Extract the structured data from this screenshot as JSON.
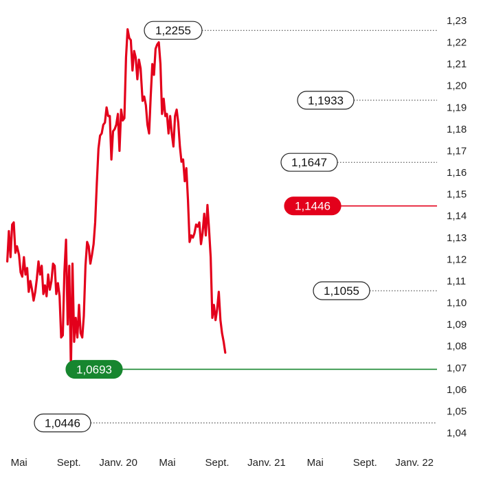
{
  "chart_data": {
    "type": "line",
    "title": "",
    "xlabel": "",
    "ylabel": "",
    "ylim": [
      1.04,
      1.23
    ],
    "grid": false,
    "legend": "none",
    "y_ticks": [
      "1,04",
      "1,05",
      "1,06",
      "1,07",
      "1,08",
      "1,09",
      "1,10",
      "1,11",
      "1,12",
      "1,13",
      "1,14",
      "1,15",
      "1,16",
      "1,17",
      "1,18",
      "1,19",
      "1,20",
      "1,21",
      "1,22",
      "1,23"
    ],
    "x_ticks": [
      {
        "label": "Mai",
        "date": "2019-05-01"
      },
      {
        "label": "Sept.",
        "date": "2019-09-01"
      },
      {
        "label": "Janv. 20",
        "date": "2020-01-01"
      },
      {
        "label": "Mai",
        "date": "2020-05-01"
      },
      {
        "label": "Sept.",
        "date": "2020-09-01"
      },
      {
        "label": "Janv. 21",
        "date": "2021-01-01"
      },
      {
        "label": "Mai",
        "date": "2021-05-01"
      },
      {
        "label": "Sept.",
        "date": "2021-09-01"
      },
      {
        "label": "Janv. 22",
        "date": "2022-01-01"
      }
    ],
    "series": [
      {
        "color": "#e3001b",
        "points": [
          [
            "2019-04-02",
            1.119
          ],
          [
            "2019-04-06",
            1.133
          ],
          [
            "2019-04-10",
            1.121
          ],
          [
            "2019-04-14",
            1.136
          ],
          [
            "2019-04-18",
            1.137
          ],
          [
            "2019-04-22",
            1.123
          ],
          [
            "2019-04-26",
            1.126
          ],
          [
            "2019-05-01",
            1.122
          ],
          [
            "2019-05-05",
            1.114
          ],
          [
            "2019-05-09",
            1.112
          ],
          [
            "2019-05-13",
            1.121
          ],
          [
            "2019-05-17",
            1.113
          ],
          [
            "2019-05-21",
            1.116
          ],
          [
            "2019-05-25",
            1.105
          ],
          [
            "2019-05-29",
            1.11
          ],
          [
            "2019-06-02",
            1.106
          ],
          [
            "2019-06-06",
            1.101
          ],
          [
            "2019-06-10",
            1.105
          ],
          [
            "2019-06-14",
            1.111
          ],
          [
            "2019-06-18",
            1.119
          ],
          [
            "2019-06-22",
            1.113
          ],
          [
            "2019-06-26",
            1.117
          ],
          [
            "2019-06-30",
            1.104
          ],
          [
            "2019-07-04",
            1.108
          ],
          [
            "2019-07-08",
            1.103
          ],
          [
            "2019-07-12",
            1.113
          ],
          [
            "2019-07-16",
            1.106
          ],
          [
            "2019-07-20",
            1.11
          ],
          [
            "2019-07-24",
            1.118
          ],
          [
            "2019-07-28",
            1.117
          ],
          [
            "2019-08-01",
            1.104
          ],
          [
            "2019-08-05",
            1.109
          ],
          [
            "2019-08-09",
            1.103
          ],
          [
            "2019-08-13",
            1.084
          ],
          [
            "2019-08-17",
            1.085
          ],
          [
            "2019-08-21",
            1.114
          ],
          [
            "2019-08-25",
            1.129
          ],
          [
            "2019-08-29",
            1.09
          ],
          [
            "2019-09-02",
            1.117
          ],
          [
            "2019-09-06",
            1.069
          ],
          [
            "2019-09-10",
            1.118
          ],
          [
            "2019-09-14",
            1.082
          ],
          [
            "2019-09-18",
            1.093
          ],
          [
            "2019-09-22",
            1.084
          ],
          [
            "2019-09-26",
            1.099
          ],
          [
            "2019-09-30",
            1.086
          ],
          [
            "2019-10-04",
            1.084
          ],
          [
            "2019-10-08",
            1.094
          ],
          [
            "2019-10-12",
            1.117
          ],
          [
            "2019-10-16",
            1.128
          ],
          [
            "2019-10-20",
            1.126
          ],
          [
            "2019-10-24",
            1.118
          ],
          [
            "2019-10-28",
            1.122
          ],
          [
            "2019-11-01",
            1.127
          ],
          [
            "2019-11-05",
            1.137
          ],
          [
            "2019-11-09",
            1.155
          ],
          [
            "2019-11-13",
            1.171
          ],
          [
            "2019-11-17",
            1.177
          ],
          [
            "2019-11-21",
            1.178
          ],
          [
            "2019-11-25",
            1.182
          ],
          [
            "2019-11-29",
            1.183
          ],
          [
            "2019-12-03",
            1.19
          ],
          [
            "2019-12-07",
            1.186
          ],
          [
            "2019-12-11",
            1.186
          ],
          [
            "2019-12-15",
            1.166
          ],
          [
            "2019-12-19",
            1.179
          ],
          [
            "2019-12-23",
            1.18
          ],
          [
            "2019-12-27",
            1.182
          ],
          [
            "2019-12-31",
            1.187
          ],
          [
            "2020-01-04",
            1.17
          ],
          [
            "2020-01-08",
            1.189
          ],
          [
            "2020-01-12",
            1.184
          ],
          [
            "2020-01-16",
            1.185
          ],
          [
            "2020-01-20",
            1.213
          ],
          [
            "2020-01-24",
            1.226
          ],
          [
            "2020-01-28",
            1.222
          ],
          [
            "2020-02-01",
            1.221
          ],
          [
            "2020-02-05",
            1.207
          ],
          [
            "2020-02-09",
            1.216
          ],
          [
            "2020-02-13",
            1.213
          ],
          [
            "2020-02-17",
            1.203
          ],
          [
            "2020-02-21",
            1.212
          ],
          [
            "2020-02-25",
            1.208
          ],
          [
            "2020-03-01",
            1.193
          ],
          [
            "2020-03-05",
            1.195
          ],
          [
            "2020-03-09",
            1.191
          ],
          [
            "2020-03-13",
            1.182
          ],
          [
            "2020-03-17",
            1.178
          ],
          [
            "2020-03-21",
            1.195
          ],
          [
            "2020-03-25",
            1.21
          ],
          [
            "2020-03-29",
            1.205
          ],
          [
            "2020-04-02",
            1.217
          ],
          [
            "2020-04-06",
            1.219
          ],
          [
            "2020-04-10",
            1.22
          ],
          [
            "2020-04-14",
            1.21
          ],
          [
            "2020-04-18",
            1.187
          ],
          [
            "2020-04-22",
            1.194
          ],
          [
            "2020-04-26",
            1.186
          ],
          [
            "2020-04-30",
            1.187
          ],
          [
            "2020-05-04",
            1.178
          ],
          [
            "2020-05-08",
            1.186
          ],
          [
            "2020-05-12",
            1.178
          ],
          [
            "2020-05-16",
            1.172
          ],
          [
            "2020-05-20",
            1.186
          ],
          [
            "2020-05-24",
            1.189
          ],
          [
            "2020-05-28",
            1.183
          ],
          [
            "2020-06-01",
            1.172
          ],
          [
            "2020-06-05",
            1.165
          ],
          [
            "2020-06-09",
            1.166
          ],
          [
            "2020-06-13",
            1.156
          ],
          [
            "2020-06-17",
            1.162
          ],
          [
            "2020-06-21",
            1.147
          ],
          [
            "2020-06-25",
            1.128
          ],
          [
            "2020-06-29",
            1.131
          ],
          [
            "2020-07-03",
            1.13
          ],
          [
            "2020-07-07",
            1.132
          ],
          [
            "2020-07-11",
            1.136
          ],
          [
            "2020-07-15",
            1.135
          ],
          [
            "2020-07-19",
            1.137
          ],
          [
            "2020-07-23",
            1.127
          ],
          [
            "2020-07-27",
            1.132
          ],
          [
            "2020-07-31",
            1.141
          ],
          [
            "2020-08-04",
            1.131
          ],
          [
            "2020-08-08",
            1.145
          ],
          [
            "2020-08-12",
            1.134
          ],
          [
            "2020-08-16",
            1.121
          ],
          [
            "2020-08-20",
            1.093
          ],
          [
            "2020-08-24",
            1.099
          ],
          [
            "2020-08-28",
            1.092
          ],
          [
            "2020-09-01",
            1.097
          ],
          [
            "2020-09-05",
            1.105
          ],
          [
            "2020-09-09",
            1.092
          ],
          [
            "2020-09-13",
            1.086
          ],
          [
            "2020-09-17",
            1.082
          ],
          [
            "2020-09-21",
            1.077
          ]
        ]
      }
    ],
    "annotations": [
      {
        "label": "1,2255",
        "value": 1.2255,
        "style": "outline",
        "line": "dotted"
      },
      {
        "label": "1,1933",
        "value": 1.1933,
        "style": "outline",
        "line": "dotted"
      },
      {
        "label": "1,1647",
        "value": 1.1647,
        "style": "outline",
        "line": "dotted"
      },
      {
        "label": "1,1446",
        "value": 1.1446,
        "style": "filled",
        "line": "solid",
        "color": "#e3001b"
      },
      {
        "label": "1,1055",
        "value": 1.1055,
        "style": "outline",
        "line": "dotted"
      },
      {
        "label": "1,0693",
        "value": 1.0693,
        "style": "filled",
        "line": "solid",
        "color": "#17862f"
      },
      {
        "label": "1,0446",
        "value": 1.0446,
        "style": "outline",
        "line": "dotted"
      }
    ]
  }
}
